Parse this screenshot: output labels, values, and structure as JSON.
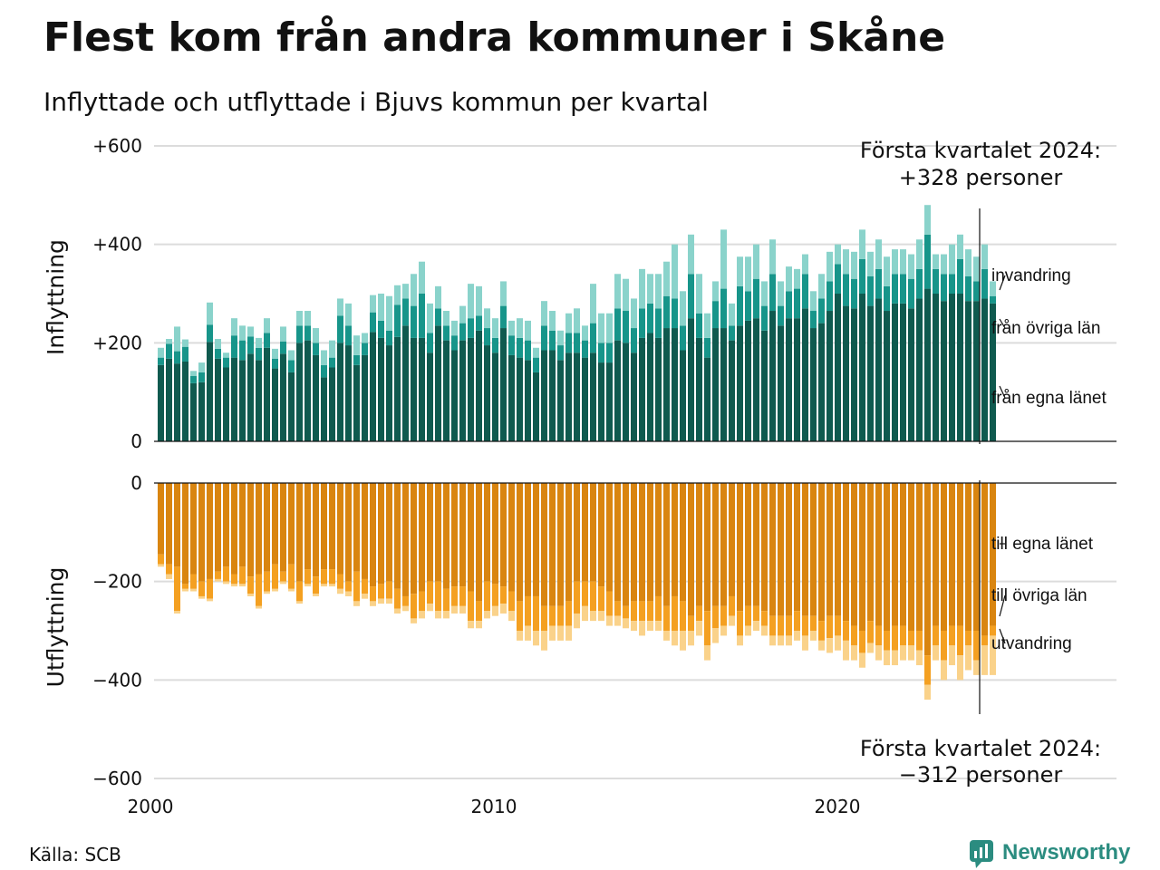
{
  "title": "Flest kom från andra kommuner i Skåne",
  "subtitle": "Inflyttade och utflyttade i Bjuvs kommun per kvartal",
  "source": "Källa: SCB",
  "brand": "Newsworthy",
  "annotations": {
    "top_line1": "Första kvartalet 2024:",
    "top_line2": "+328 personer",
    "bottom_line1": "Första kvartalet 2024:",
    "bottom_line2": "−312 personer"
  },
  "colors": {
    "in_own": "#0f5a4f",
    "in_other": "#17958a",
    "in_immigration": "#8ad3cb",
    "out_own": "#d98510",
    "out_other": "#f4a021",
    "out_emigration": "#fad28a",
    "brand": "#2b8c80"
  },
  "chart_data": {
    "type": "bar",
    "stacked": true,
    "frequency": "quarterly",
    "x_start": "2000 Q1",
    "x_ticks": [
      "2000",
      "2010",
      "2020"
    ],
    "in_panel": {
      "ylabel": "Inflyttning",
      "ylim": [
        0,
        600
      ],
      "ytick_labels": [
        "0",
        "+200",
        "+400",
        "+600"
      ],
      "ytick_values": [
        0,
        200,
        400,
        600
      ],
      "series": [
        {
          "name": "från egna länet",
          "values": [
            155,
            168,
            158,
            162,
            118,
            120,
            202,
            168,
            150,
            170,
            165,
            178,
            165,
            190,
            148,
            178,
            140,
            200,
            205,
            175,
            130,
            150,
            200,
            195,
            155,
            175,
            222,
            210,
            195,
            212,
            235,
            210,
            210,
            180,
            235,
            205,
            185,
            205,
            210,
            225,
            195,
            180,
            230,
            175,
            170,
            165,
            140,
            185,
            185,
            165,
            180,
            180,
            170,
            180,
            160,
            160,
            205,
            200,
            180,
            210,
            220,
            210,
            230,
            230,
            185,
            250,
            210,
            170,
            230,
            230,
            205,
            235,
            245,
            250,
            225,
            265,
            235,
            250,
            250,
            270,
            230,
            240,
            265,
            300,
            275,
            270,
            300,
            275,
            290,
            265,
            280,
            280,
            270,
            290,
            310,
            300,
            285,
            300,
            300,
            285,
            285,
            290,
            280
          ]
        },
        {
          "name": "från övriga län",
          "values": [
            15,
            30,
            25,
            30,
            15,
            20,
            35,
            20,
            20,
            45,
            40,
            35,
            25,
            30,
            20,
            25,
            25,
            35,
            30,
            25,
            25,
            20,
            55,
            40,
            20,
            25,
            40,
            35,
            30,
            65,
            55,
            65,
            90,
            40,
            35,
            30,
            30,
            35,
            40,
            30,
            35,
            30,
            45,
            40,
            40,
            40,
            30,
            50,
            40,
            30,
            40,
            40,
            35,
            60,
            40,
            40,
            65,
            65,
            50,
            60,
            60,
            60,
            65,
            60,
            50,
            90,
            50,
            40,
            55,
            80,
            30,
            80,
            60,
            80,
            50,
            75,
            40,
            55,
            60,
            70,
            35,
            50,
            60,
            60,
            65,
            60,
            70,
            60,
            60,
            50,
            60,
            60,
            60,
            60,
            110,
            50,
            55,
            40,
            70,
            50,
            40,
            60,
            15
          ]
        },
        {
          "name": "invandring",
          "values": [
            20,
            10,
            50,
            15,
            10,
            20,
            45,
            20,
            10,
            35,
            30,
            20,
            20,
            30,
            20,
            30,
            20,
            30,
            30,
            30,
            30,
            35,
            35,
            45,
            40,
            20,
            35,
            55,
            70,
            40,
            30,
            65,
            65,
            60,
            45,
            30,
            30,
            35,
            70,
            60,
            40,
            40,
            50,
            30,
            40,
            40,
            20,
            50,
            40,
            30,
            40,
            50,
            30,
            80,
            60,
            60,
            70,
            65,
            60,
            80,
            60,
            70,
            70,
            110,
            70,
            80,
            80,
            50,
            40,
            120,
            45,
            60,
            70,
            70,
            50,
            70,
            50,
            50,
            40,
            40,
            40,
            50,
            60,
            40,
            50,
            55,
            60,
            50,
            60,
            60,
            50,
            50,
            50,
            60,
            60,
            30,
            40,
            60,
            50,
            55,
            50,
            50,
            30
          ]
        }
      ]
    },
    "out_panel": {
      "ylabel": "Utflyttning",
      "ylim": [
        -600,
        0
      ],
      "ytick_labels": [
        "0",
        "−200",
        "−400",
        "−600"
      ],
      "ytick_values": [
        0,
        -200,
        -400,
        -600
      ],
      "series": [
        {
          "name": "till egna länet",
          "values": [
            -145,
            -165,
            -170,
            -205,
            -185,
            -200,
            -195,
            -180,
            -170,
            -185,
            -170,
            -190,
            -185,
            -180,
            -165,
            -180,
            -165,
            -200,
            -175,
            -190,
            -175,
            -175,
            -185,
            -200,
            -180,
            -195,
            -210,
            -205,
            -200,
            -215,
            -230,
            -225,
            -220,
            -200,
            -200,
            -215,
            -210,
            -210,
            -220,
            -240,
            -200,
            -205,
            -210,
            -220,
            -240,
            -230,
            -230,
            -250,
            -250,
            -250,
            -240,
            -200,
            -200,
            -200,
            -210,
            -220,
            -240,
            -250,
            -240,
            -240,
            -240,
            -230,
            -250,
            -230,
            -240,
            -270,
            -250,
            -260,
            -250,
            -250,
            -230,
            -260,
            -250,
            -250,
            -260,
            -270,
            -270,
            -270,
            -260,
            -270,
            -270,
            -280,
            -270,
            -270,
            -280,
            -290,
            -300,
            -280,
            -290,
            -300,
            -290,
            -290,
            -300,
            -300,
            -350,
            -290,
            -300,
            -290,
            -290,
            -300,
            -300,
            -310,
            -290
          ]
        },
        {
          "name": "till övriga län",
          "values": [
            -20,
            -20,
            -90,
            -10,
            -30,
            -30,
            -40,
            -15,
            -30,
            -20,
            -35,
            -35,
            -65,
            -40,
            -50,
            -20,
            -50,
            -40,
            -30,
            -35,
            -30,
            -30,
            -30,
            -20,
            -60,
            -30,
            -30,
            -30,
            -35,
            -40,
            -20,
            -50,
            -40,
            -45,
            -60,
            -45,
            -40,
            -40,
            -60,
            -40,
            -60,
            -45,
            -35,
            -40,
            -60,
            -60,
            -70,
            -50,
            -40,
            -40,
            -50,
            -65,
            -50,
            -60,
            -50,
            -50,
            -30,
            -25,
            -40,
            -40,
            -40,
            -50,
            -50,
            -70,
            -60,
            -30,
            -30,
            -70,
            -45,
            -40,
            -40,
            -50,
            -40,
            -30,
            -30,
            -40,
            -40,
            -40,
            -40,
            -40,
            -30,
            -40,
            -45,
            -40,
            -40,
            -40,
            -45,
            -45,
            -40,
            -40,
            -50,
            -40,
            -30,
            -40,
            -60,
            -40,
            -60,
            -40,
            -60,
            -30,
            -60,
            -20,
            -20
          ]
        },
        {
          "name": "utvandring",
          "values": [
            -5,
            -10,
            -5,
            -5,
            -5,
            -5,
            -5,
            -5,
            -5,
            -5,
            -5,
            -5,
            -5,
            -5,
            -5,
            -5,
            -5,
            -5,
            -5,
            -5,
            -5,
            -5,
            -10,
            -10,
            -10,
            -10,
            -10,
            -10,
            -10,
            -10,
            -10,
            -10,
            -15,
            -15,
            -15,
            -15,
            -15,
            -15,
            -15,
            -15,
            -15,
            -20,
            -20,
            -20,
            -20,
            -30,
            -30,
            -40,
            -30,
            -30,
            -30,
            -30,
            -30,
            -20,
            -20,
            -20,
            -20,
            -20,
            -20,
            -30,
            -20,
            -20,
            -20,
            -30,
            -40,
            -30,
            -30,
            -30,
            -30,
            -20,
            -20,
            -20,
            -20,
            -20,
            -20,
            -20,
            -20,
            -20,
            -20,
            -30,
            -20,
            -20,
            -30,
            -30,
            -40,
            -30,
            -30,
            -20,
            -30,
            -30,
            -30,
            -30,
            -30,
            -30,
            -30,
            -30,
            -40,
            -40,
            -50,
            -50,
            -30,
            -60,
            -80
          ]
        }
      ]
    }
  }
}
